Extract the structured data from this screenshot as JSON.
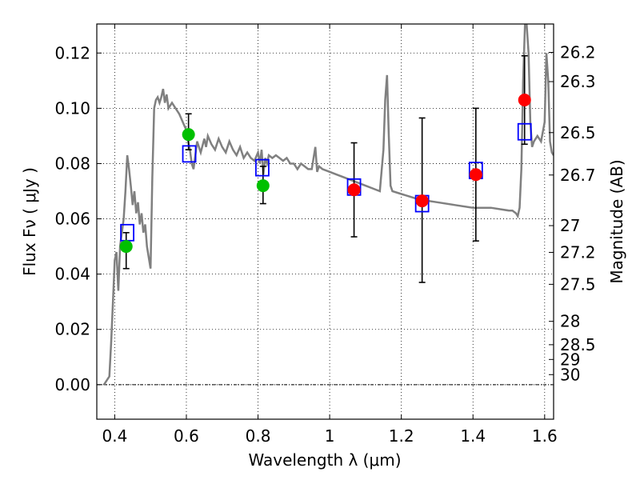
{
  "chart_data": {
    "type": "scatter",
    "xlabel": "Wavelength  λ (μm)",
    "ylabel": "Flux  Fν  ( μJy )",
    "ylabel_right": "Magnitude (AB)",
    "xlim": [
      0.35,
      1.625
    ],
    "ylim": [
      -0.0125,
      0.1305
    ],
    "x_ticks": [
      0.4,
      0.6,
      0.8,
      1.0,
      1.2,
      1.4,
      1.6
    ],
    "x_tick_labels": [
      "0.4",
      "0.6",
      "0.8",
      "1",
      "1.2",
      "1.4",
      "1.6"
    ],
    "y_ticks": [
      0.0,
      0.02,
      0.04,
      0.06,
      0.08,
      0.1,
      0.12
    ],
    "y_tick_labels": [
      "0.00",
      "0.02",
      "0.04",
      "0.06",
      "0.08",
      "0.10",
      "0.12"
    ],
    "mag_ticks": [
      26.2,
      26.3,
      26.5,
      26.7,
      27,
      27.2,
      27.5,
      28,
      28.5,
      29,
      30
    ],
    "mag_tick_labels": [
      "26.2",
      "26.3",
      "26.5",
      "26.7",
      "27",
      "27.2",
      "27.5",
      "28",
      "28.5",
      "29",
      "30"
    ],
    "grid": true,
    "colors": {
      "model": "#808080",
      "green_points": "#00c000",
      "red_points": "#ff0000",
      "model_boxes": "#0000ff",
      "errorbars": "#000000"
    },
    "model_spectrum": {
      "x": [
        0.37,
        0.385,
        0.39,
        0.395,
        0.4,
        0.405,
        0.41,
        0.415,
        0.42,
        0.425,
        0.43,
        0.435,
        0.44,
        0.445,
        0.45,
        0.455,
        0.46,
        0.465,
        0.47,
        0.475,
        0.48,
        0.485,
        0.49,
        0.5,
        0.505,
        0.51,
        0.515,
        0.52,
        0.525,
        0.53,
        0.535,
        0.54,
        0.545,
        0.55,
        0.56,
        0.57,
        0.58,
        0.59,
        0.6,
        0.605,
        0.61,
        0.615,
        0.62,
        0.625,
        0.63,
        0.64,
        0.65,
        0.655,
        0.66,
        0.67,
        0.68,
        0.69,
        0.7,
        0.71,
        0.72,
        0.73,
        0.74,
        0.75,
        0.76,
        0.77,
        0.78,
        0.79,
        0.8,
        0.805,
        0.81,
        0.815,
        0.82,
        0.825,
        0.83,
        0.84,
        0.85,
        0.86,
        0.87,
        0.88,
        0.89,
        0.9,
        0.91,
        0.92,
        0.93,
        0.94,
        0.95,
        0.96,
        0.965,
        0.97,
        0.98,
        1.0,
        1.02,
        1.04,
        1.06,
        1.08,
        1.1,
        1.12,
        1.14,
        1.15,
        1.155,
        1.16,
        1.165,
        1.17,
        1.175,
        1.2,
        1.25,
        1.3,
        1.35,
        1.4,
        1.45,
        1.5,
        1.51,
        1.52,
        1.525,
        1.53,
        1.535,
        1.54,
        1.545,
        1.55,
        1.555,
        1.56,
        1.565,
        1.57,
        1.58,
        1.59,
        1.6,
        1.605,
        1.61,
        1.615,
        1.62,
        1.625
      ],
      "y": [
        0.0,
        0.003,
        0.015,
        0.03,
        0.045,
        0.048,
        0.034,
        0.05,
        0.055,
        0.06,
        0.07,
        0.083,
        0.078,
        0.072,
        0.065,
        0.07,
        0.062,
        0.066,
        0.058,
        0.062,
        0.055,
        0.058,
        0.05,
        0.042,
        0.075,
        0.1,
        0.103,
        0.104,
        0.102,
        0.104,
        0.107,
        0.102,
        0.105,
        0.1,
        0.102,
        0.1,
        0.098,
        0.095,
        0.092,
        0.088,
        0.085,
        0.08,
        0.078,
        0.083,
        0.088,
        0.084,
        0.089,
        0.086,
        0.09,
        0.087,
        0.085,
        0.089,
        0.086,
        0.084,
        0.088,
        0.085,
        0.083,
        0.086,
        0.082,
        0.084,
        0.082,
        0.081,
        0.084,
        0.08,
        0.085,
        0.076,
        0.082,
        0.08,
        0.083,
        0.082,
        0.083,
        0.082,
        0.081,
        0.082,
        0.08,
        0.08,
        0.078,
        0.08,
        0.079,
        0.078,
        0.078,
        0.086,
        0.077,
        0.079,
        0.078,
        0.077,
        0.076,
        0.075,
        0.074,
        0.073,
        0.072,
        0.071,
        0.07,
        0.085,
        0.103,
        0.112,
        0.09,
        0.072,
        0.07,
        0.069,
        0.067,
        0.066,
        0.065,
        0.064,
        0.064,
        0.063,
        0.063,
        0.062,
        0.061,
        0.064,
        0.078,
        0.11,
        0.13,
        0.13,
        0.12,
        0.095,
        0.086,
        0.088,
        0.09,
        0.088,
        0.095,
        0.12,
        0.11,
        0.088,
        0.084,
        0.083
      ]
    },
    "observed_points": [
      {
        "x": 0.432,
        "y": 0.05,
        "yerr_low": 0.042,
        "yerr_high": 0.055,
        "color": "green"
      },
      {
        "x": 0.606,
        "y": 0.0905,
        "yerr_low": 0.085,
        "yerr_high": 0.098,
        "color": "green"
      },
      {
        "x": 0.814,
        "y": 0.072,
        "yerr_low": 0.0655,
        "yerr_high": 0.079,
        "color": "green"
      },
      {
        "x": 1.068,
        "y": 0.0705,
        "yerr_low": 0.0535,
        "yerr_high": 0.0875,
        "color": "red"
      },
      {
        "x": 1.258,
        "y": 0.0665,
        "yerr_low": 0.037,
        "yerr_high": 0.0965,
        "color": "red"
      },
      {
        "x": 1.408,
        "y": 0.076,
        "yerr_low": 0.052,
        "yerr_high": 0.1,
        "color": "red"
      },
      {
        "x": 1.544,
        "y": 0.103,
        "yerr_low": 0.087,
        "yerr_high": 0.119,
        "color": "red"
      }
    ],
    "model_boxes": [
      {
        "x": 0.435,
        "y": 0.055
      },
      {
        "x": 0.608,
        "y": 0.0835
      },
      {
        "x": 0.812,
        "y": 0.0785
      },
      {
        "x": 1.068,
        "y": 0.0715
      },
      {
        "x": 1.258,
        "y": 0.0655
      },
      {
        "x": 1.408,
        "y": 0.0775
      },
      {
        "x": 1.544,
        "y": 0.0915
      }
    ]
  }
}
